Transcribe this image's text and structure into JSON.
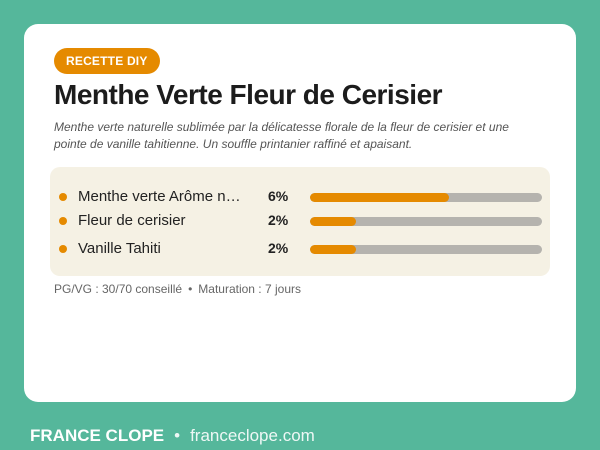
{
  "badge": "RECETTE DIY",
  "title": "Menthe Verte Fleur de Cerisier",
  "description": "Menthe verte naturelle sublimée par la délicatesse florale de la fleur de cerisier et une pointe de vanille tahitienne. Un souffle printanier raffiné et apaisant.",
  "ingredients": [
    {
      "name": "Menthe verte Arôme naturel",
      "pct_label": "6%",
      "fill_fraction": 0.6
    },
    {
      "name": "Fleur de cerisier",
      "pct_label": "2%",
      "fill_fraction": 0.2
    },
    {
      "name": "Vanille Tahiti",
      "pct_label": "2%",
      "fill_fraction": 0.2
    }
  ],
  "meta": {
    "pgvg": "PG/VG : 30/70 conseillé",
    "separator": "•",
    "maturation": "Maturation : 7 jours"
  },
  "footer": {
    "brand": "FRANCE CLOPE",
    "separator": "•",
    "site": "franceclope.com"
  },
  "colors": {
    "background": "#55b79b",
    "accent": "#e58a00",
    "panel": "#f5f1e4",
    "bar_track": "#b5b3ae"
  }
}
